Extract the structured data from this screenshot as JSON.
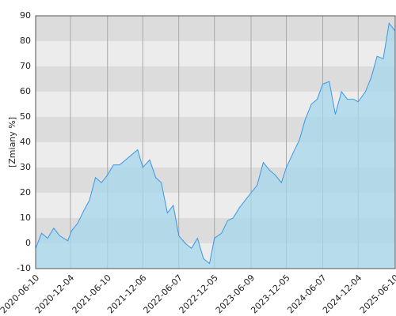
{
  "chart_data": {
    "type": "area",
    "y_label": "[Zmiany %]",
    "x": [
      "2020-06-10",
      "2020-07-10",
      "2020-08-10",
      "2020-09-10",
      "2020-10-10",
      "2020-11-20",
      "2020-12-10",
      "2021-01-10",
      "2021-02-10",
      "2021-03-10",
      "2021-04-10",
      "2021-05-10",
      "2021-06-10",
      "2021-07-10",
      "2021-08-10",
      "2021-09-10",
      "2021-10-10",
      "2021-11-10",
      "2021-12-06",
      "2022-01-10",
      "2022-02-10",
      "2022-03-10",
      "2022-04-10",
      "2022-05-10",
      "2022-06-07",
      "2022-07-10",
      "2022-08-10",
      "2022-09-10",
      "2022-10-10",
      "2022-11-10",
      "2022-12-05",
      "2023-01-10",
      "2023-02-10",
      "2023-03-10",
      "2023-04-10",
      "2023-05-10",
      "2023-06-09",
      "2023-07-10",
      "2023-08-10",
      "2023-09-10",
      "2023-10-10",
      "2023-11-10",
      "2023-12-05",
      "2024-01-10",
      "2024-02-10",
      "2024-03-10",
      "2024-04-10",
      "2024-05-10",
      "2024-06-07",
      "2024-07-10",
      "2024-08-10",
      "2024-09-10",
      "2024-10-10",
      "2024-11-10",
      "2024-12-04",
      "2025-01-10",
      "2025-02-10",
      "2025-03-10",
      "2025-04-10",
      "2025-05-10",
      "2025-06-10"
    ],
    "values": [
      -2,
      4,
      2,
      6,
      3,
      1,
      5,
      8,
      13,
      17,
      26,
      24,
      27,
      31,
      31,
      33,
      35,
      37,
      30,
      33,
      26,
      24,
      12,
      15,
      3,
      0,
      -2,
      2,
      -6,
      -8,
      2,
      4,
      9,
      10,
      14,
      17,
      20,
      23,
      32,
      29,
      27,
      24,
      30,
      36,
      41,
      49,
      55,
      57,
      63,
      64,
      51,
      60,
      57,
      57,
      56,
      60,
      66,
      74,
      73,
      87,
      84
    ],
    "line_color": "#3d95e6",
    "fill_color": "#a6d8ee",
    "band_colors": [
      "#dcdcdc",
      "#ececec"
    ],
    "grid": true,
    "xlim": [
      "2020-06-10",
      "2025-06-10"
    ],
    "xticks": [
      "2020-06-10",
      "2020-12-04",
      "2021-06-10",
      "2021-12-06",
      "2022-06-07",
      "2022-12-05",
      "2023-06-09",
      "2023-12-05",
      "2024-06-07",
      "2024-12-04",
      "2025-06-10"
    ],
    "ylim": [
      -10,
      90
    ],
    "yticks": [
      -10,
      0,
      10,
      20,
      30,
      40,
      50,
      60,
      70,
      80,
      90
    ]
  }
}
